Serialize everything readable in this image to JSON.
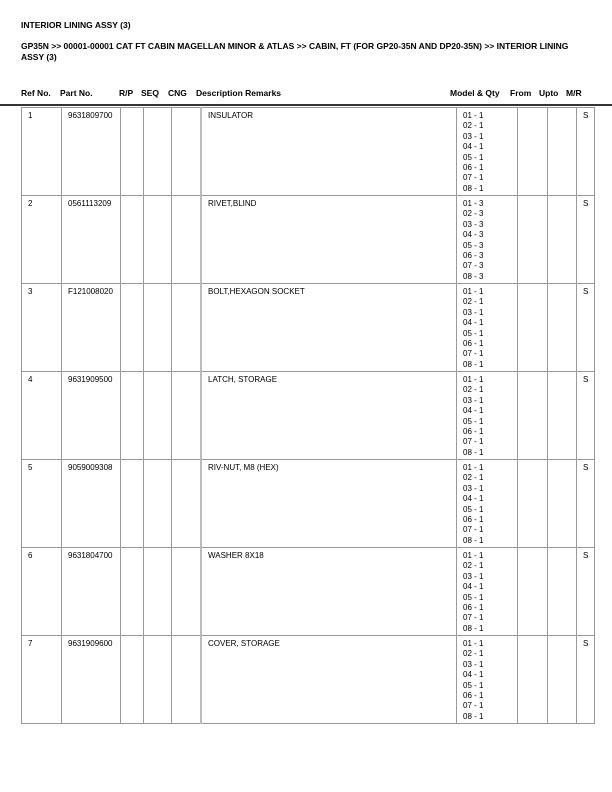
{
  "title": "INTERIOR LINING ASSY (3)",
  "breadcrumb": "GP35N >> 00001-00001 CAT FT CABIN MAGELLAN MINOR & ATLAS >> CABIN, FT (FOR GP20-35N AND DP20-35N) >> INTERIOR LINING ASSY (3)",
  "columns": {
    "ref": "Ref No.",
    "part": "Part No.",
    "rp": "R/P",
    "seq": "SEQ",
    "cng": "CNG",
    "desc": "Description Remarks",
    "model": "Model & Qty",
    "from": "From",
    "upto": "Upto",
    "mr": "M/R"
  },
  "rows": [
    {
      "ref": "1",
      "part": "9631809700",
      "desc": "INSULATOR",
      "model_qty": [
        "01 - 1",
        "02 - 1",
        "03 - 1",
        "04 - 1",
        "05 - 1",
        "06 - 1",
        "07 - 1",
        "08 - 1"
      ],
      "mr": "S"
    },
    {
      "ref": "2",
      "part": "0561113209",
      "desc": "RIVET,BLIND",
      "model_qty": [
        "01 - 3",
        "02 - 3",
        "03 - 3",
        "04 - 3",
        "05 - 3",
        "06 - 3",
        "07 - 3",
        "08 - 3"
      ],
      "mr": "S"
    },
    {
      "ref": "3",
      "part": "F121008020",
      "desc": "BOLT,HEXAGON SOCKET",
      "model_qty": [
        "01 - 1",
        "02 - 1",
        "03 - 1",
        "04 - 1",
        "05 - 1",
        "06 - 1",
        "07 - 1",
        "08 - 1"
      ],
      "mr": "S"
    },
    {
      "ref": "4",
      "part": "9631909500",
      "desc": "LATCH, STORAGE",
      "model_qty": [
        "01 - 1",
        "02 - 1",
        "03 - 1",
        "04 - 1",
        "05 - 1",
        "06 - 1",
        "07 - 1",
        "08 - 1"
      ],
      "mr": "S"
    },
    {
      "ref": "5",
      "part": "9059009308",
      "desc": "RIV-NUT, M8 (HEX)",
      "model_qty": [
        "01 - 1",
        "02 - 1",
        "03 - 1",
        "04 - 1",
        "05 - 1",
        "06 - 1",
        "07 - 1",
        "08 - 1"
      ],
      "mr": "S"
    },
    {
      "ref": "6",
      "part": "9631804700",
      "desc": "WASHER 8X18",
      "model_qty": [
        "01 - 1",
        "02 - 1",
        "03 - 1",
        "04 - 1",
        "05 - 1",
        "06 - 1",
        "07 - 1",
        "08 - 1"
      ],
      "mr": "S"
    },
    {
      "ref": "7",
      "part": "9631909600",
      "desc": "COVER, STORAGE",
      "model_qty": [
        "01 - 1",
        "02 - 1",
        "03 - 1",
        "04 - 1",
        "05 - 1",
        "06 - 1",
        "07 - 1",
        "08 - 1"
      ],
      "mr": "S"
    }
  ]
}
